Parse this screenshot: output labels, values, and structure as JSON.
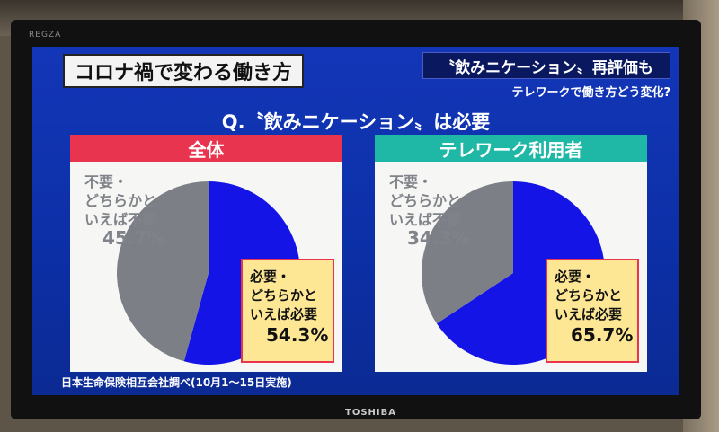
{
  "tv": {
    "brand_top": "REGZA",
    "brand_bottom": "TOSHIBA"
  },
  "broadcast": {
    "title": "コロナ禍で変わる働き方",
    "topic": "〝飲みニケーション〟再評価も",
    "subtopic": "テレワークで働き方どう変化?",
    "question": "Q.〝飲みニケーション〟は必要",
    "source": "日本生命保険相互会社調べ(10月1〜15日実施)"
  },
  "colors": {
    "needed": "#1414e6",
    "unneeded": "#7d7f86",
    "header_all": "#e8344e",
    "header_telework": "#1fb7a5",
    "label_box": "#fde795"
  },
  "chart_data": [
    {
      "type": "pie",
      "title": "全体",
      "slices": [
        {
          "label_lines": [
            "必要・",
            "どちらかと",
            "いえば必要"
          ],
          "value": 54.3,
          "value_text": "54.3%"
        },
        {
          "label_lines": [
            "不要・",
            "どちらかと",
            "いえば不要"
          ],
          "value": 45.7,
          "value_text": "45.7%"
        }
      ]
    },
    {
      "type": "pie",
      "title": "テレワーク利用者",
      "slices": [
        {
          "label_lines": [
            "必要・",
            "どちらかと",
            "いえば必要"
          ],
          "value": 65.7,
          "value_text": "65.7%"
        },
        {
          "label_lines": [
            "不要・",
            "どちらかと",
            "いえば不要"
          ],
          "value": 34.3,
          "value_text": "34.3%"
        }
      ]
    }
  ]
}
